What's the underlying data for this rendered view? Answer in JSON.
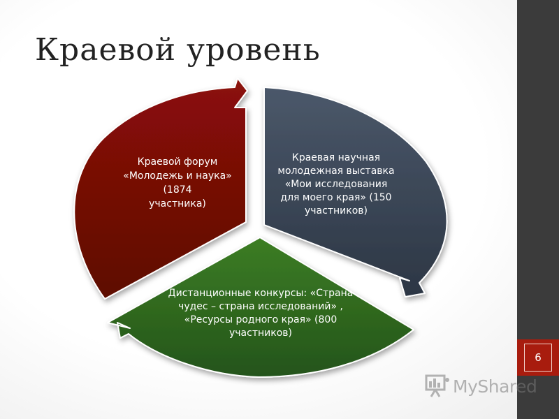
{
  "slide": {
    "title": "Краевой уровень",
    "page_number": "6"
  },
  "diagram": {
    "segments": [
      {
        "key": "red",
        "color": "#7a0e06",
        "lines": [
          "Краевой форум",
          "«Молодежь и наука»",
          "(1874",
          "участника)"
        ]
      },
      {
        "key": "slate",
        "color": "#3d4a5b",
        "lines": [
          "Краевая научная",
          "молодежная выставка",
          "«Мои исследования",
          "для моего края» (150",
          "участников)"
        ]
      },
      {
        "key": "green",
        "color": "#2f6a1c",
        "lines": [
          "Дистанционные конкурсы: «Страна",
          "чудес – страна исследований» ,",
          "«Ресурсы родного края» (800",
          "участников)"
        ]
      }
    ]
  },
  "watermark": {
    "text": "MyShared",
    "icon": "presentation-icon"
  },
  "colors": {
    "sidebar": "#3b3b3b",
    "page_tab": "#a81c0e"
  }
}
